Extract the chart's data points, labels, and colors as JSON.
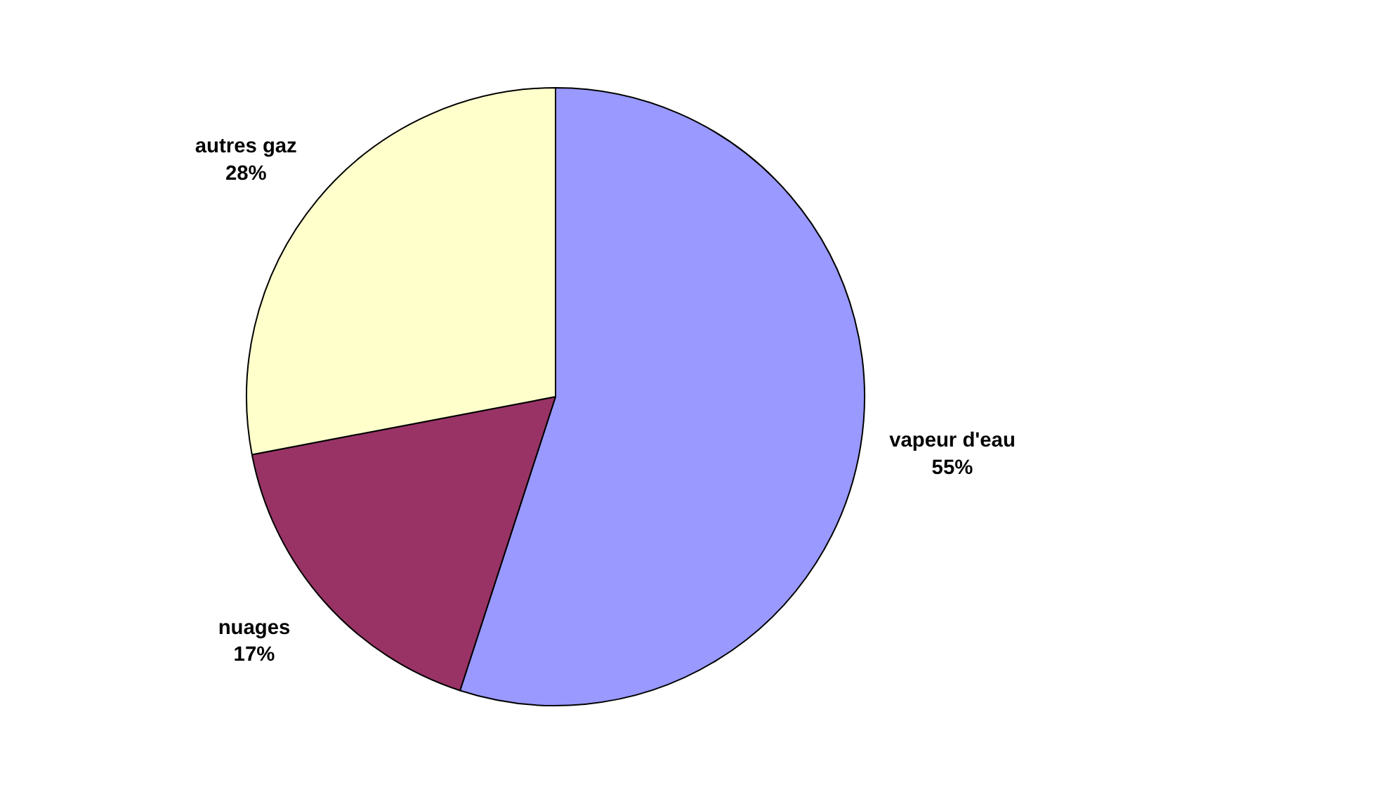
{
  "chart_data": {
    "type": "pie",
    "categories": [
      "vapeur d'eau",
      "nuages",
      "autres gaz"
    ],
    "values": [
      55,
      17,
      28
    ],
    "colors": [
      "#9999ff",
      "#993366",
      "#ffffcc"
    ],
    "value_labels": [
      "55%",
      "17%",
      "28%"
    ]
  }
}
